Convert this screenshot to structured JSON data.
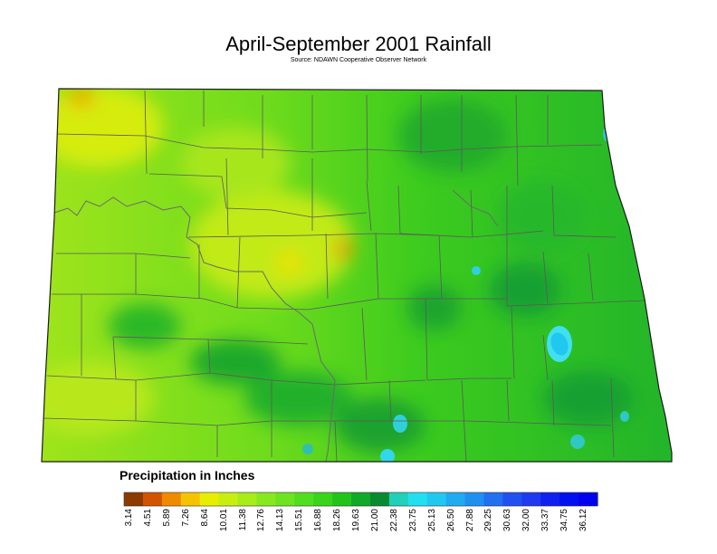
{
  "title": "April-September 2001 Rainfall",
  "subtitle": "Source: NDAWN Cooperative Observer Network",
  "legend": {
    "title": "Precipitation in Inches",
    "values": [
      "3.14",
      "4.51",
      "5.89",
      "7.26",
      "8.64",
      "10.01",
      "11.38",
      "12.76",
      "14.13",
      "15.51",
      "16.88",
      "18.26",
      "19.63",
      "21.00",
      "22.38",
      "23.75",
      "25.13",
      "26.50",
      "27.88",
      "29.25",
      "30.63",
      "32.00",
      "33.37",
      "34.75",
      "36.12"
    ],
    "colors": [
      "#8b3a00",
      "#d35400",
      "#f08a00",
      "#f5c400",
      "#e8ee00",
      "#c8ee10",
      "#a8ec18",
      "#88e820",
      "#6ee420",
      "#52de20",
      "#3ad41c",
      "#22c41a",
      "#12a828",
      "#0a8a30",
      "#20d0b8",
      "#20e0f0",
      "#20c8f0",
      "#20aaf0",
      "#2090f0",
      "#2070f0",
      "#2050f0",
      "#2038f0",
      "#1020f0",
      "#0010f0",
      "#0000f0"
    ]
  },
  "map": {
    "region": "North Dakota",
    "colors": {
      "outline": "#1a1a1a",
      "county_line": "#5a5a5a",
      "river": "#6a6a6a",
      "dry": "#b8e61a",
      "mid": "#52d21a",
      "wet": "#18a030",
      "very_wet": "#30e0f0"
    }
  }
}
